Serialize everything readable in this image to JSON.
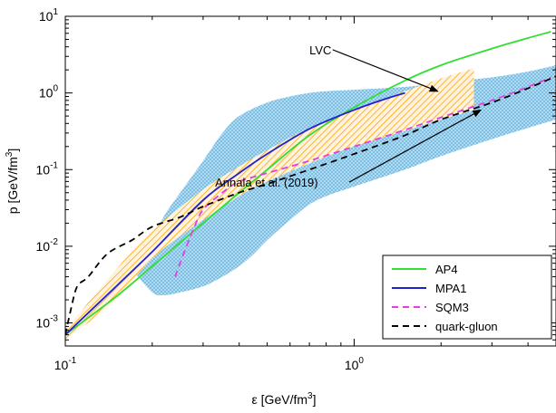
{
  "chart_data": {
    "type": "line",
    "xlabel": "ε [GeV/fm",
    "xlabel_sup": "3",
    "xlabel_end": "]",
    "ylabel": "p [GeV/fm",
    "ylabel_sup": "3",
    "ylabel_end": "]",
    "xscale": "log",
    "yscale": "log",
    "xlim": [
      0.1,
      5.0
    ],
    "ylim": [
      0.0005,
      10
    ],
    "x_ticks": [
      {
        "base": "10",
        "exp": "-1",
        "value": 0.1
      },
      {
        "base": "10",
        "exp": "0",
        "value": 1
      }
    ],
    "y_ticks": [
      {
        "base": "10",
        "exp": "-3",
        "value": 0.001
      },
      {
        "base": "10",
        "exp": "-2",
        "value": 0.01
      },
      {
        "base": "10",
        "exp": "-1",
        "value": 0.1
      },
      {
        "base": "10",
        "exp": "0",
        "value": 1
      },
      {
        "base": "10",
        "exp": "1",
        "value": 10
      }
    ],
    "grid": false,
    "legend_position": "bottom-right",
    "series": [
      {
        "name": "AP4",
        "color": "#33dd33",
        "dash": "solid",
        "x": [
          0.1,
          0.15,
          0.2,
          0.3,
          0.4,
          0.5,
          0.7,
          1.0,
          1.5,
          2.0,
          3.0,
          4.0,
          4.8
        ],
        "y": [
          0.0007,
          0.0022,
          0.0055,
          0.02,
          0.05,
          0.1,
          0.28,
          0.65,
          1.45,
          2.3,
          3.8,
          5.2,
          6.3
        ]
      },
      {
        "name": "MPA1",
        "color": "#2222cc",
        "dash": "solid",
        "x": [
          0.1,
          0.15,
          0.2,
          0.3,
          0.4,
          0.5,
          0.7,
          1.0,
          1.3,
          1.5
        ],
        "y": [
          0.0007,
          0.003,
          0.0085,
          0.04,
          0.09,
          0.16,
          0.34,
          0.6,
          0.85,
          1.0
        ]
      },
      {
        "name": "SQM3",
        "color": "#e040e0",
        "dash": "dashed",
        "x": [
          0.24,
          0.26,
          0.28,
          0.3,
          0.35,
          0.4,
          0.5,
          0.7,
          1.0,
          1.5,
          2.0,
          3.0,
          4.0,
          4.8
        ],
        "y": [
          0.004,
          0.009,
          0.018,
          0.03,
          0.05,
          0.07,
          0.09,
          0.13,
          0.2,
          0.33,
          0.48,
          0.8,
          1.2,
          1.6
        ]
      },
      {
        "name": "quark-gluon",
        "color": "#000000",
        "dash": "dashed",
        "x": [
          0.1,
          0.105,
          0.11,
          0.12,
          0.14,
          0.17,
          0.2,
          0.25,
          0.3,
          0.4,
          0.5,
          0.7,
          1.0,
          1.5,
          2.0,
          3.0,
          4.0,
          5.0
        ],
        "y": [
          0.0007,
          0.0016,
          0.003,
          0.004,
          0.008,
          0.012,
          0.018,
          0.024,
          0.033,
          0.05,
          0.065,
          0.1,
          0.16,
          0.28,
          0.45,
          0.75,
          1.15,
          1.65
        ]
      }
    ],
    "bands": [
      {
        "name": "LVC",
        "color": "#ffa500",
        "pattern": "hatch",
        "x_upper": [
          0.1,
          0.15,
          0.2,
          0.3,
          0.4,
          0.5,
          0.7,
          1.0,
          1.5,
          2.0,
          2.6
        ],
        "y_upper": [
          0.0008,
          0.005,
          0.016,
          0.055,
          0.11,
          0.18,
          0.35,
          0.6,
          1.05,
          1.55,
          2.1
        ],
        "x_lower": [
          2.6,
          2.0,
          1.5,
          1.0,
          0.7,
          0.5,
          0.4,
          0.3,
          0.2,
          0.15,
          0.1
        ],
        "y_lower": [
          0.6,
          0.45,
          0.32,
          0.2,
          0.12,
          0.07,
          0.045,
          0.022,
          0.007,
          0.002,
          0.0006
        ]
      },
      {
        "name": "Annala et al. (2019)",
        "color": "#7fc4e8",
        "pattern": "crosshatch",
        "x_upper": [
          0.17,
          0.2,
          0.22,
          0.25,
          0.3,
          0.35,
          0.4,
          0.5,
          0.6,
          0.7,
          0.8,
          1.0,
          1.5,
          2.0,
          3.0,
          4.0,
          5.0
        ],
        "y_upper": [
          0.005,
          0.012,
          0.025,
          0.05,
          0.13,
          0.3,
          0.5,
          0.75,
          0.9,
          1.0,
          1.05,
          1.1,
          1.2,
          1.35,
          1.6,
          1.9,
          2.3
        ],
        "x_lower": [
          5.0,
          4.0,
          3.0,
          2.0,
          1.5,
          1.0,
          0.8,
          0.7,
          0.6,
          0.5,
          0.45,
          0.4,
          0.35,
          0.3,
          0.25,
          0.22,
          0.2,
          0.17
        ],
        "y_lower": [
          0.45,
          0.35,
          0.25,
          0.15,
          0.1,
          0.06,
          0.045,
          0.035,
          0.022,
          0.012,
          0.008,
          0.0055,
          0.004,
          0.003,
          0.0025,
          0.0023,
          0.0025,
          0.005
        ]
      }
    ],
    "annotations": [
      {
        "text": "LVC",
        "x": 0.7,
        "y": 3.2,
        "arrow_to_x": 1.95,
        "arrow_to_y": 1.05
      },
      {
        "text": "Annala et al. (2019)",
        "x": 0.33,
        "y": 0.06,
        "arrow_to_x": 2.75,
        "arrow_to_y": 0.6
      }
    ]
  }
}
